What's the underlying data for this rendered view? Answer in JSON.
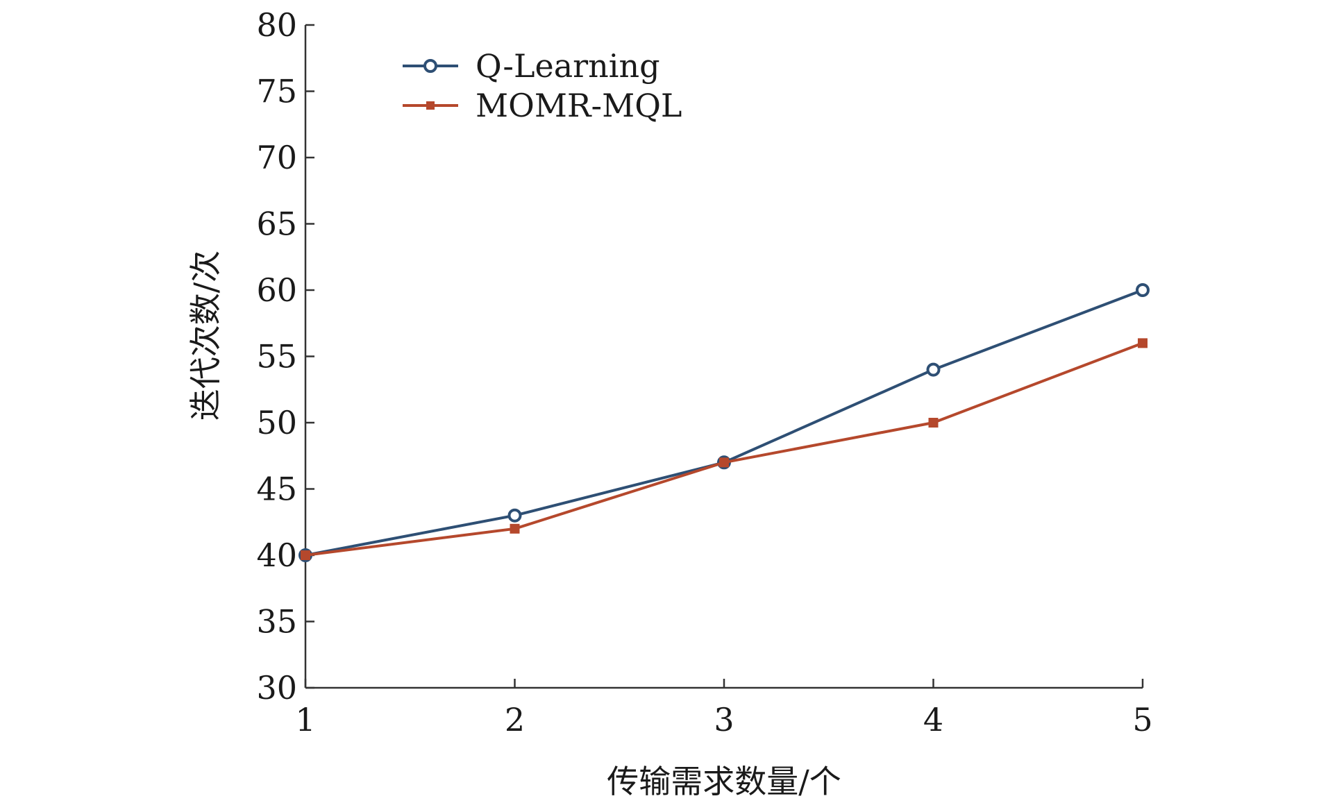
{
  "chart_data": {
    "type": "line",
    "title": "",
    "xlabel": "传输需求数量/个",
    "ylabel": "迭代次数/次",
    "x": [
      1,
      2,
      3,
      4,
      5
    ],
    "xlim": [
      1,
      5
    ],
    "ylim": [
      30,
      80
    ],
    "xticks": [
      1,
      2,
      3,
      4,
      5
    ],
    "yticks": [
      30,
      35,
      40,
      45,
      50,
      55,
      60,
      65,
      70,
      75,
      80
    ],
    "grid": false,
    "legend_position": "top-left",
    "series": [
      {
        "name": "Q-Learning",
        "values": [
          40,
          43,
          47,
          54,
          60
        ],
        "color": "#2e4f74",
        "marker": "circle"
      },
      {
        "name": "MOMR-MQL",
        "values": [
          40,
          42,
          47,
          50,
          56
        ],
        "color": "#b5482c",
        "marker": "square"
      }
    ]
  }
}
